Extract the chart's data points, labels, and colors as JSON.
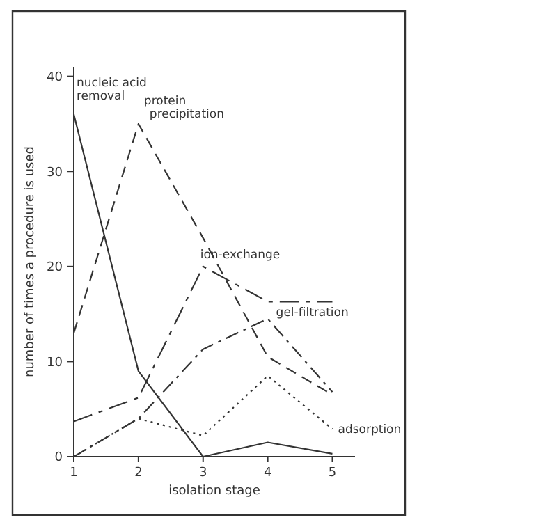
{
  "chart_data": {
    "type": "line",
    "xlabel": "isolation stage",
    "ylabel": "number of times a procedure is used",
    "x": [
      1,
      2,
      3,
      4,
      5
    ],
    "xlim": [
      1,
      5.35
    ],
    "ylim": [
      0,
      41
    ],
    "xticks": [
      1,
      2,
      3,
      4,
      5
    ],
    "yticks": [
      0,
      10,
      20,
      30,
      40
    ],
    "grid": false,
    "marker": "none",
    "series": [
      {
        "name": "nucleic acid removal",
        "color": "#333333",
        "line_style": "solid",
        "values": [
          36,
          9,
          0,
          1.5,
          0.3
        ]
      },
      {
        "name": "protein precipitation",
        "color": "#333333",
        "line_style": "dashed",
        "values": [
          13,
          35,
          23,
          10.5,
          6.5
        ]
      },
      {
        "name": "ion-exchange",
        "color": "#333333",
        "line_style": "dashed",
        "values": [
          3.7,
          6.2,
          20,
          16.3,
          16.3
        ]
      },
      {
        "name": "gel-filtration",
        "color": "#333333",
        "line_style": "dashed",
        "values": [
          0,
          4,
          11.3,
          14.5,
          6.8
        ]
      },
      {
        "name": "adsorption",
        "color": "#333333",
        "line_style": "dotted",
        "values": [
          0,
          4,
          2.2,
          8.5,
          2.9
        ]
      }
    ]
  }
}
